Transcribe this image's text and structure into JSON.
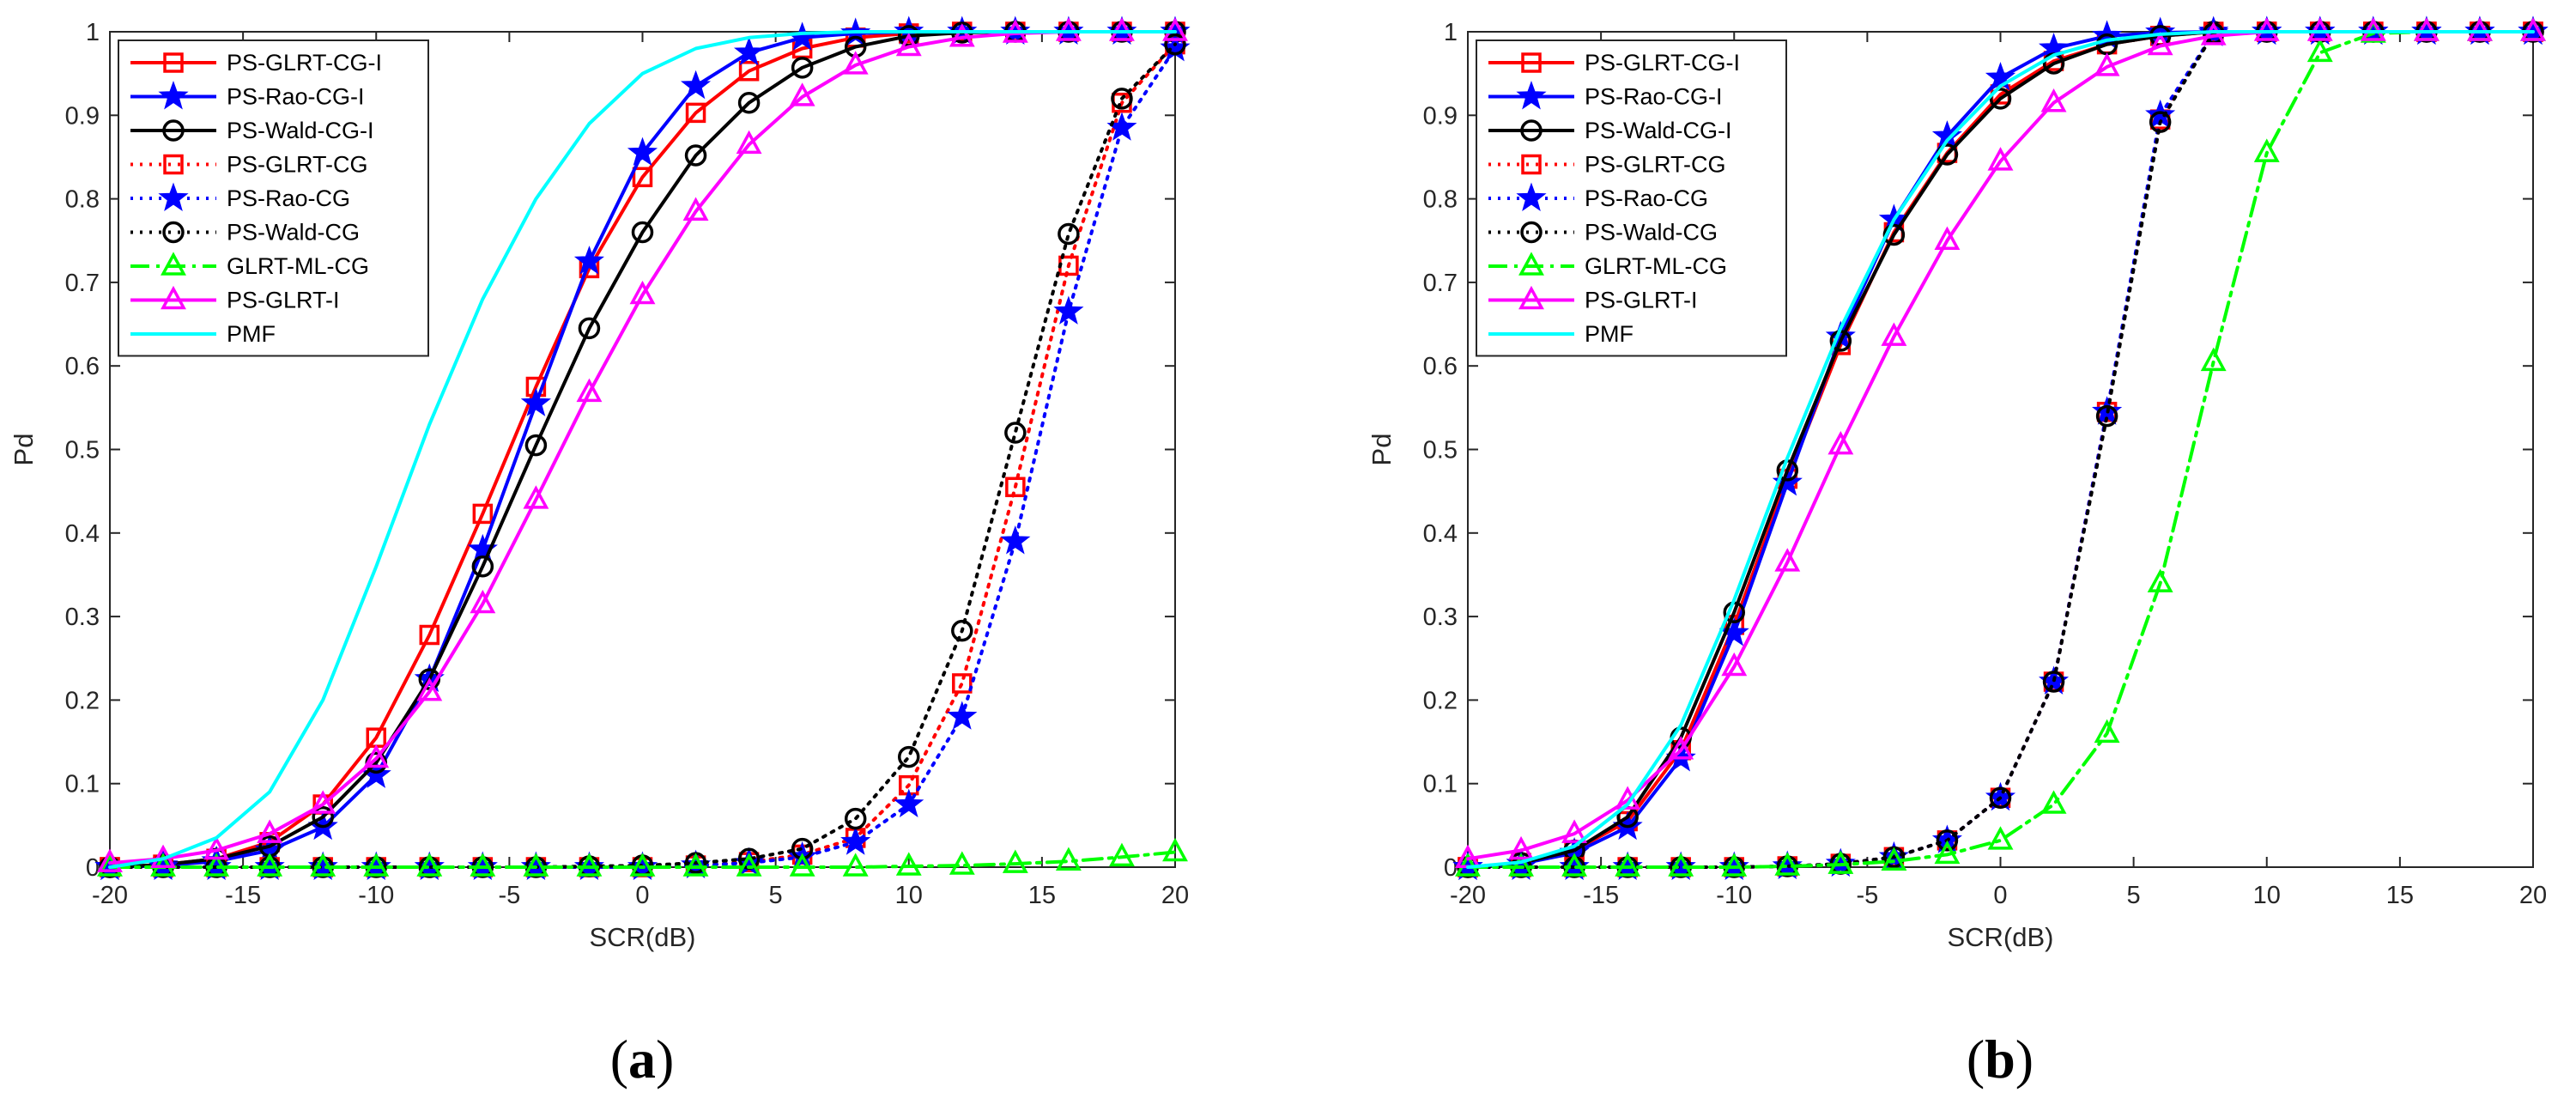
{
  "colors": {
    "red": "#ff0000",
    "blue": "#0000ff",
    "black": "#000000",
    "green": "#00ff00",
    "magenta": "#ff00ff",
    "cyan": "#00ffff",
    "axis": "#262626"
  },
  "chart_data": [
    {
      "type": "line",
      "panel": "a",
      "caption": {
        "open": "(",
        "letter": "a",
        "close": ")"
      },
      "xlabel": "SCR(dB)",
      "ylabel": "Pd",
      "xlim": [
        -20,
        20
      ],
      "ylim": [
        0,
        1
      ],
      "xticks": [
        -20,
        -15,
        -10,
        -5,
        0,
        5,
        10,
        15,
        20
      ],
      "yticks": [
        0,
        0.1,
        0.2,
        0.3,
        0.4,
        0.5,
        0.6,
        0.7,
        0.8,
        0.9,
        1
      ],
      "ytick_labels": [
        "0",
        "0.1",
        "0.2",
        "0.3",
        "0.4",
        "0.5",
        "0.6",
        "0.7",
        "0.8",
        "0.9",
        "1"
      ],
      "legend_position": "top-left",
      "series": [
        {
          "name": "PS-GLRT-CG-I",
          "color": "#ff0000",
          "style": "solid",
          "marker": "square",
          "x": [
            -20,
            -18,
            -16,
            -14,
            -12,
            -10,
            -8,
            -6,
            -4,
            -2,
            0,
            2,
            4,
            6,
            8,
            10,
            12,
            14,
            16,
            18,
            20
          ],
          "y": [
            0.0,
            0.003,
            0.01,
            0.03,
            0.075,
            0.155,
            0.278,
            0.423,
            0.575,
            0.717,
            0.826,
            0.903,
            0.953,
            0.98,
            0.993,
            0.998,
            1,
            1,
            1,
            1,
            1
          ]
        },
        {
          "name": "PS-Rao-CG-I",
          "color": "#0000ff",
          "style": "solid",
          "marker": "star",
          "x": [
            -20,
            -18,
            -16,
            -14,
            -12,
            -10,
            -8,
            -6,
            -4,
            -2,
            0,
            2,
            4,
            6,
            8,
            10,
            12,
            14,
            16,
            18,
            20
          ],
          "y": [
            0.0,
            0.002,
            0.007,
            0.02,
            0.048,
            0.11,
            0.225,
            0.38,
            0.555,
            0.725,
            0.855,
            0.935,
            0.975,
            0.993,
            0.998,
            1,
            1,
            1,
            1,
            1,
            1
          ]
        },
        {
          "name": "PS-Wald-CG-I",
          "color": "#000000",
          "style": "solid",
          "marker": "circle",
          "x": [
            -20,
            -18,
            -16,
            -14,
            -12,
            -10,
            -8,
            -6,
            -4,
            -2,
            0,
            2,
            4,
            6,
            8,
            10,
            12,
            14,
            16,
            18,
            20
          ],
          "y": [
            0.0,
            0.003,
            0.01,
            0.025,
            0.06,
            0.125,
            0.225,
            0.36,
            0.505,
            0.645,
            0.76,
            0.852,
            0.915,
            0.957,
            0.982,
            0.995,
            0.999,
            1,
            1,
            1,
            1
          ]
        },
        {
          "name": "PS-GLRT-CG",
          "color": "#ff0000",
          "style": "dotted",
          "marker": "square",
          "x": [
            -20,
            -18,
            -16,
            -14,
            -12,
            -10,
            -8,
            -6,
            -4,
            -2,
            0,
            2,
            4,
            6,
            8,
            10,
            12,
            14,
            16,
            18,
            20
          ],
          "y": [
            0,
            0,
            0,
            0,
            0,
            0,
            0,
            0,
            0,
            0,
            0,
            0.002,
            0.006,
            0.015,
            0.035,
            0.098,
            0.22,
            0.455,
            0.72,
            0.915,
            0.985
          ]
        },
        {
          "name": "PS-Rao-CG",
          "color": "#0000ff",
          "style": "dotted",
          "marker": "star",
          "x": [
            -20,
            -18,
            -16,
            -14,
            -12,
            -10,
            -8,
            -6,
            -4,
            -2,
            0,
            2,
            4,
            6,
            8,
            10,
            12,
            14,
            16,
            18,
            20
          ],
          "y": [
            0,
            0,
            0,
            0,
            0,
            0,
            0,
            0,
            0,
            0,
            0,
            0.002,
            0.005,
            0.012,
            0.03,
            0.075,
            0.18,
            0.39,
            0.665,
            0.885,
            0.98
          ]
        },
        {
          "name": "PS-Wald-CG",
          "color": "#000000",
          "style": "dotted",
          "marker": "circle",
          "x": [
            -20,
            -18,
            -16,
            -14,
            -12,
            -10,
            -8,
            -6,
            -4,
            -2,
            0,
            2,
            4,
            6,
            8,
            10,
            12,
            14,
            16,
            18,
            20
          ],
          "y": [
            0,
            0,
            0,
            0,
            0,
            0,
            0,
            0,
            0,
            0.001,
            0.002,
            0.005,
            0.01,
            0.022,
            0.058,
            0.132,
            0.283,
            0.52,
            0.758,
            0.92,
            0.985
          ]
        },
        {
          "name": "GLRT-ML-CG",
          "color": "#00ff00",
          "style": "dashdot",
          "marker": "triangle",
          "x": [
            -20,
            -18,
            -16,
            -14,
            -12,
            -10,
            -8,
            -6,
            -4,
            -2,
            0,
            2,
            4,
            6,
            8,
            10,
            12,
            14,
            16,
            18,
            20
          ],
          "y": [
            0,
            0,
            0,
            0,
            0,
            0,
            0,
            0,
            0,
            0,
            0,
            0,
            0,
            0,
            0,
            0.001,
            0.002,
            0.004,
            0.007,
            0.012,
            0.018
          ]
        },
        {
          "name": "PS-GLRT-I",
          "color": "#ff00ff",
          "style": "solid",
          "marker": "triangle",
          "x": [
            -20,
            -18,
            -16,
            -14,
            -12,
            -10,
            -8,
            -6,
            -4,
            -2,
            0,
            2,
            4,
            6,
            8,
            10,
            12,
            14,
            16,
            18,
            20
          ],
          "y": [
            0.005,
            0.01,
            0.02,
            0.04,
            0.075,
            0.13,
            0.21,
            0.315,
            0.44,
            0.568,
            0.685,
            0.785,
            0.865,
            0.922,
            0.96,
            0.982,
            0.993,
            0.998,
            1,
            1,
            1
          ]
        },
        {
          "name": "PMF",
          "color": "#00ffff",
          "style": "solid",
          "marker": "none",
          "x": [
            -20,
            -18,
            -16,
            -14,
            -12,
            -10,
            -8,
            -6,
            -4,
            -2,
            0,
            2,
            4,
            6,
            8,
            10,
            12,
            14,
            16,
            18,
            20
          ],
          "y": [
            0.0,
            0.01,
            0.035,
            0.09,
            0.2,
            0.36,
            0.53,
            0.68,
            0.8,
            0.89,
            0.95,
            0.98,
            0.993,
            0.998,
            1,
            1,
            1,
            1,
            1,
            1,
            1
          ]
        }
      ]
    },
    {
      "type": "line",
      "panel": "b",
      "caption": {
        "open": "(",
        "letter": "b",
        "close": ")"
      },
      "xlabel": "SCR(dB)",
      "ylabel": "Pd",
      "xlim": [
        -20,
        20
      ],
      "ylim": [
        0,
        1
      ],
      "xticks": [
        -20,
        -15,
        -10,
        -5,
        0,
        5,
        10,
        15,
        20
      ],
      "yticks": [
        0,
        0.1,
        0.2,
        0.3,
        0.4,
        0.5,
        0.6,
        0.7,
        0.8,
        0.9,
        1
      ],
      "ytick_labels": [
        "0",
        "0.1",
        "0.2",
        "0.3",
        "0.4",
        "0.5",
        "0.6",
        "0.7",
        "0.8",
        "0.9",
        "1"
      ],
      "legend_position": "top-left",
      "series": [
        {
          "name": "PS-GLRT-CG-I",
          "color": "#ff0000",
          "style": "solid",
          "marker": "square",
          "x": [
            -20,
            -18,
            -16,
            -14,
            -12,
            -10,
            -8,
            -6,
            -4,
            -2,
            0,
            2,
            4,
            6,
            8,
            10,
            12,
            14,
            16,
            18,
            20
          ],
          "y": [
            0.0,
            0.005,
            0.02,
            0.055,
            0.14,
            0.29,
            0.465,
            0.625,
            0.76,
            0.855,
            0.925,
            0.965,
            0.985,
            0.995,
            1,
            1,
            1,
            1,
            1,
            1,
            1
          ]
        },
        {
          "name": "PS-Rao-CG-I",
          "color": "#0000ff",
          "style": "solid",
          "marker": "star",
          "x": [
            -20,
            -18,
            -16,
            -14,
            -12,
            -10,
            -8,
            -6,
            -4,
            -2,
            0,
            2,
            4,
            6,
            8,
            10,
            12,
            14,
            16,
            18,
            20
          ],
          "y": [
            0.0,
            0.004,
            0.017,
            0.048,
            0.13,
            0.28,
            0.46,
            0.635,
            0.775,
            0.875,
            0.945,
            0.98,
            0.995,
            0.999,
            1,
            1,
            1,
            1,
            1,
            1,
            1
          ]
        },
        {
          "name": "PS-Wald-CG-I",
          "color": "#000000",
          "style": "solid",
          "marker": "circle",
          "x": [
            -20,
            -18,
            -16,
            -14,
            -12,
            -10,
            -8,
            -6,
            -4,
            -2,
            0,
            2,
            4,
            6,
            8,
            10,
            12,
            14,
            16,
            18,
            20
          ],
          "y": [
            0.0,
            0.005,
            0.02,
            0.06,
            0.155,
            0.305,
            0.475,
            0.63,
            0.757,
            0.853,
            0.92,
            0.962,
            0.985,
            0.995,
            1,
            1,
            1,
            1,
            1,
            1,
            1
          ]
        },
        {
          "name": "PS-GLRT-CG",
          "color": "#ff0000",
          "style": "dotted",
          "marker": "square",
          "x": [
            -20,
            -18,
            -16,
            -14,
            -12,
            -10,
            -8,
            -6,
            -4,
            -2,
            0,
            2,
            4,
            6,
            8,
            10,
            12,
            14,
            16,
            18,
            20
          ],
          "y": [
            0,
            0,
            0,
            0,
            0,
            0,
            0.001,
            0.004,
            0.012,
            0.032,
            0.083,
            0.222,
            0.545,
            0.895,
            0.998,
            1,
            1,
            1,
            1,
            1,
            1
          ]
        },
        {
          "name": "PS-Rao-CG",
          "color": "#0000ff",
          "style": "dotted",
          "marker": "star",
          "x": [
            -20,
            -18,
            -16,
            -14,
            -12,
            -10,
            -8,
            -6,
            -4,
            -2,
            0,
            2,
            4,
            6,
            8,
            10,
            12,
            14,
            16,
            18,
            20
          ],
          "y": [
            0,
            0,
            0,
            0,
            0,
            0,
            0.001,
            0.004,
            0.012,
            0.032,
            0.083,
            0.222,
            0.545,
            0.9,
            0.998,
            1,
            1,
            1,
            1,
            1,
            1
          ]
        },
        {
          "name": "PS-Wald-CG",
          "color": "#000000",
          "style": "dotted",
          "marker": "circle",
          "x": [
            -20,
            -18,
            -16,
            -14,
            -12,
            -10,
            -8,
            -6,
            -4,
            -2,
            0,
            2,
            4,
            6,
            8,
            10,
            12,
            14,
            16,
            18,
            20
          ],
          "y": [
            0,
            0,
            0,
            0,
            0,
            0,
            0.001,
            0.004,
            0.012,
            0.032,
            0.083,
            0.222,
            0.54,
            0.892,
            0.998,
            1,
            1,
            1,
            1,
            1,
            1
          ]
        },
        {
          "name": "GLRT-ML-CG",
          "color": "#00ff00",
          "style": "dashdot",
          "marker": "triangle",
          "x": [
            -20,
            -18,
            -16,
            -14,
            -12,
            -10,
            -8,
            -6,
            -4,
            -2,
            0,
            2,
            4,
            6,
            8,
            10,
            12,
            14,
            16,
            18,
            20
          ],
          "y": [
            0,
            0,
            0,
            0,
            0,
            0,
            0.001,
            0.003,
            0.007,
            0.015,
            0.032,
            0.075,
            0.16,
            0.34,
            0.605,
            0.855,
            0.975,
            0.998,
            1,
            1,
            1
          ]
        },
        {
          "name": "PS-GLRT-I",
          "color": "#ff00ff",
          "style": "solid",
          "marker": "triangle",
          "x": [
            -20,
            -18,
            -16,
            -14,
            -12,
            -10,
            -8,
            -6,
            -4,
            -2,
            0,
            2,
            4,
            6,
            8,
            10,
            12,
            14,
            16,
            18,
            20
          ],
          "y": [
            0.01,
            0.02,
            0.04,
            0.08,
            0.14,
            0.24,
            0.365,
            0.505,
            0.635,
            0.75,
            0.845,
            0.915,
            0.958,
            0.983,
            0.995,
            1,
            1,
            1,
            1,
            1,
            1
          ]
        },
        {
          "name": "PMF",
          "color": "#00ffff",
          "style": "solid",
          "marker": "none",
          "x": [
            -20,
            -18,
            -16,
            -14,
            -12,
            -10,
            -8,
            -6,
            -4,
            -2,
            0,
            2,
            4,
            6,
            8,
            10,
            12,
            14,
            16,
            18,
            20
          ],
          "y": [
            0.0,
            0.006,
            0.025,
            0.075,
            0.17,
            0.32,
            0.49,
            0.645,
            0.775,
            0.87,
            0.935,
            0.972,
            0.99,
            0.997,
            1,
            1,
            1,
            1,
            1,
            1,
            1
          ]
        }
      ]
    }
  ]
}
